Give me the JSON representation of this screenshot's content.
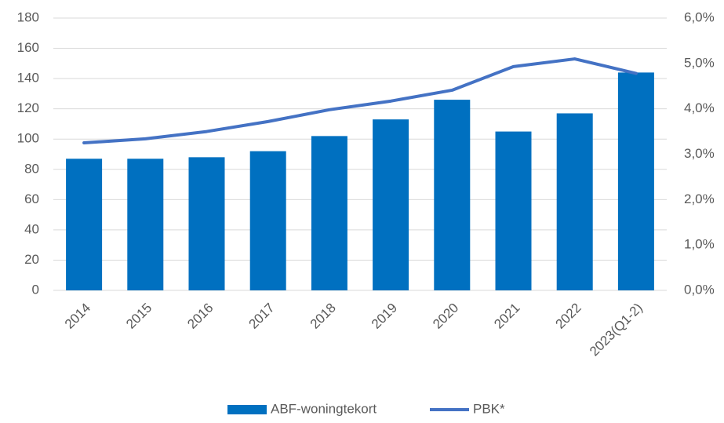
{
  "chart_data": {
    "type": "bar_line",
    "categories": [
      "2014",
      "2015",
      "2016",
      "2017",
      "2018",
      "2019",
      "2020",
      "2021",
      "2022",
      "2023(Q1-2)"
    ],
    "series": [
      {
        "name": "ABF-woningtekort",
        "color": "#0070c0",
        "type": "bar",
        "values": [
          87,
          87,
          88,
          92,
          102,
          113,
          126,
          105,
          117,
          144
        ]
      },
      {
        "name": "PBK*",
        "color": "#4472c4",
        "type": "line",
        "axis": "y2",
        "values": [
          3.25,
          3.34,
          3.5,
          3.72,
          3.98,
          4.17,
          4.41,
          4.93,
          5.1,
          4.78
        ]
      }
    ],
    "ylim": [
      0,
      180
    ],
    "yticks": [
      0,
      20,
      40,
      60,
      80,
      100,
      120,
      140,
      160,
      180
    ],
    "y2lim": [
      0,
      6
    ],
    "y2ticks": [
      {
        "value": 0,
        "label": "0,0%"
      },
      {
        "value": 1,
        "label": "1,0%"
      },
      {
        "value": 2,
        "label": "2,0%"
      },
      {
        "value": 3,
        "label": "3,0%"
      },
      {
        "value": 4,
        "label": "4,0%"
      },
      {
        "value": 5,
        "label": "5,0%"
      },
      {
        "value": 6,
        "label": "6,0%"
      }
    ],
    "grid": true,
    "legend": "bottom"
  }
}
